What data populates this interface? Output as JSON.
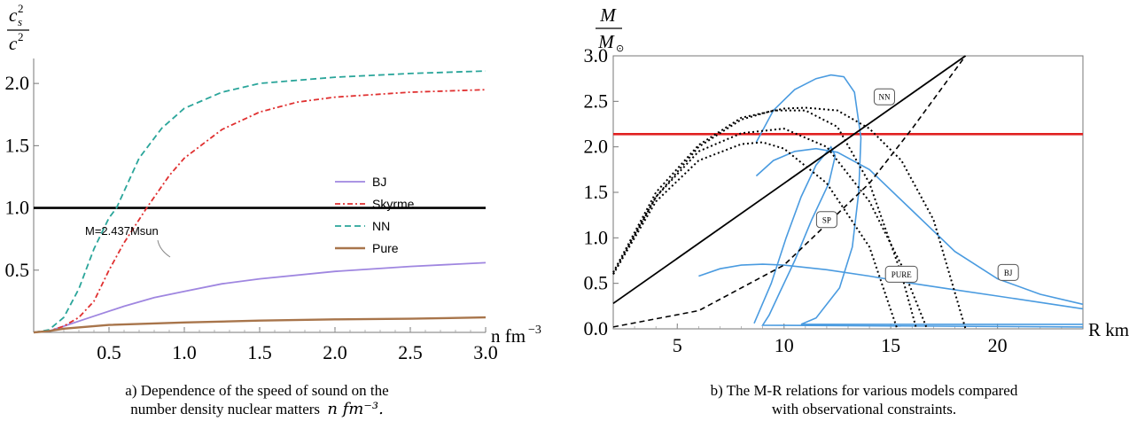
{
  "chart_data": [
    {
      "type": "line",
      "title": "",
      "xlabel": "n fm⁻³",
      "ylabel": "c_s² / c²",
      "xlim": [
        0,
        3.0
      ],
      "ylim": [
        0,
        2.3
      ],
      "xticks": [
        "0.5",
        "1.0",
        "1.5",
        "2.0",
        "2.5",
        "3.0"
      ],
      "yticks": [
        "0.5",
        "1.0",
        "1.5",
        "2.0"
      ],
      "legend_position": "right",
      "annotation": "M=2.437Msun",
      "reference_line": 1.0,
      "series": [
        {
          "name": "BJ",
          "color": "#9f86e0",
          "dash": "solid",
          "x": [
            0,
            0.1,
            0.2,
            0.4,
            0.6,
            0.8,
            1.0,
            1.25,
            1.5,
            2.0,
            2.5,
            3.0
          ],
          "y": [
            0,
            0.01,
            0.05,
            0.13,
            0.21,
            0.28,
            0.33,
            0.39,
            0.43,
            0.49,
            0.53,
            0.56
          ]
        },
        {
          "name": "Skyrme",
          "color": "#e03030",
          "dash": "dashdot",
          "x": [
            0,
            0.1,
            0.2,
            0.3,
            0.4,
            0.5,
            0.6,
            0.75,
            0.9,
            1.0,
            1.25,
            1.5,
            1.75,
            2.0,
            2.5,
            3.0
          ],
          "y": [
            0,
            0.01,
            0.05,
            0.12,
            0.25,
            0.5,
            0.72,
            1.0,
            1.26,
            1.4,
            1.63,
            1.77,
            1.85,
            1.89,
            1.93,
            1.95
          ]
        },
        {
          "name": "NN",
          "color": "#2aa59a",
          "dash": "dashed",
          "x": [
            0,
            0.1,
            0.2,
            0.3,
            0.4,
            0.5,
            0.55,
            0.7,
            0.85,
            1.0,
            1.25,
            1.5,
            2.0,
            2.5,
            3.0
          ],
          "y": [
            0,
            0.02,
            0.12,
            0.35,
            0.67,
            0.92,
            1.0,
            1.4,
            1.64,
            1.8,
            1.93,
            2.0,
            2.05,
            2.08,
            2.1
          ]
        },
        {
          "name": "Pure",
          "color": "#a8754b",
          "dash": "solid",
          "x": [
            0,
            0.1,
            0.2,
            0.5,
            1.0,
            1.5,
            2.0,
            2.5,
            3.0
          ],
          "y": [
            0,
            0.01,
            0.03,
            0.06,
            0.08,
            0.095,
            0.105,
            0.11,
            0.12
          ]
        }
      ]
    },
    {
      "type": "line",
      "title": "",
      "xlabel": "R km",
      "ylabel": "M / M⊙",
      "xlim": [
        2,
        24
      ],
      "ylim": [
        0,
        3.0
      ],
      "xticks": [
        "5",
        "10",
        "15",
        "20"
      ],
      "yticks": [
        "0.0",
        "0.5",
        "1.0",
        "1.5",
        "2.0",
        "2.5",
        "3.0"
      ],
      "horizontal_line": {
        "y": 2.14,
        "color": "#e02020"
      },
      "series": [
        {
          "name": "BJ",
          "color": "#4a9be0",
          "style": "solid",
          "x": [
            8.7,
            9.5,
            10.5,
            11.5,
            12.5,
            14,
            16,
            18,
            20,
            22,
            24
          ],
          "y": [
            1.68,
            1.85,
            1.95,
            1.98,
            1.94,
            1.75,
            1.3,
            0.85,
            0.55,
            0.38,
            0.27
          ]
        },
        {
          "name": "NN",
          "color": "#4a9be0",
          "style": "solid",
          "x": [
            8.7,
            9.5,
            10.5,
            11.5,
            12.2,
            12.8,
            13.3,
            13.6,
            13.5,
            13.2,
            12.6,
            11.5,
            10.8,
            24
          ],
          "y": [
            2.05,
            2.4,
            2.63,
            2.75,
            2.79,
            2.77,
            2.6,
            2.1,
            1.5,
            0.9,
            0.45,
            0.12,
            0.05,
            0.05
          ]
        },
        {
          "name": "SP",
          "color": "#4a9be0",
          "style": "solid",
          "x": [
            8.6,
            9.4,
            10.1,
            10.8,
            11.5,
            12.2,
            12.4,
            12.1,
            11.3,
            10.5,
            9.8,
            9.3,
            9.0,
            24
          ],
          "y": [
            0.06,
            0.5,
            1.0,
            1.45,
            1.8,
            2.0,
            1.9,
            1.6,
            1.2,
            0.75,
            0.4,
            0.15,
            0.04,
            0.02
          ]
        },
        {
          "name": "PURE",
          "color": "#4a9be0",
          "style": "solid",
          "x": [
            6,
            7,
            8,
            9,
            10,
            12,
            14,
            16,
            18,
            20,
            22,
            24
          ],
          "y": [
            0.58,
            0.66,
            0.7,
            0.71,
            0.7,
            0.65,
            0.58,
            0.5,
            0.43,
            0.36,
            0.29,
            0.22
          ]
        },
        {
          "name": "constraint-1",
          "color": "#000000",
          "style": "dotted",
          "x": [
            2,
            4,
            6,
            8,
            9.5,
            11,
            12.5,
            14,
            15.5,
            16.2
          ],
          "y": [
            0.62,
            1.45,
            2.0,
            2.3,
            2.4,
            2.4,
            2.22,
            1.6,
            0.6,
            0.0
          ]
        },
        {
          "name": "constraint-2",
          "color": "#000000",
          "style": "dotted",
          "x": [
            2,
            4,
            6,
            8,
            9,
            10,
            12,
            14,
            15.3
          ],
          "y": [
            0.6,
            1.4,
            1.85,
            2.03,
            2.05,
            1.98,
            1.6,
            0.9,
            0.0
          ]
        },
        {
          "name": "constraint-3",
          "color": "#000000",
          "style": "dotted",
          "x": [
            2,
            4,
            6,
            8,
            10,
            12,
            14,
            15.5,
            16.7
          ],
          "y": [
            0.6,
            1.45,
            1.95,
            2.15,
            2.2,
            2.0,
            1.4,
            0.7,
            0.0
          ]
        },
        {
          "name": "constraint-4",
          "color": "#000000",
          "style": "dotted",
          "x": [
            2,
            4,
            6,
            8,
            10,
            11,
            12.5,
            14,
            15.5,
            17,
            18.5
          ],
          "y": [
            0.62,
            1.5,
            2.02,
            2.32,
            2.42,
            2.43,
            2.4,
            2.2,
            1.85,
            1.2,
            0.0
          ]
        },
        {
          "name": "causality",
          "color": "#000000",
          "style": "dashed",
          "x": [
            2,
            6,
            10,
            14,
            16,
            18.5
          ],
          "y": [
            0.02,
            0.2,
            0.7,
            1.6,
            2.2,
            3.0
          ]
        },
        {
          "name": "limit-line",
          "color": "#000000",
          "style": "solid",
          "x": [
            2,
            18.5
          ],
          "y": [
            0.28,
            3.0
          ]
        }
      ],
      "labels": [
        {
          "text": "NN",
          "x": 14.7,
          "y": 2.55
        },
        {
          "text": "SP",
          "x": 12.0,
          "y": 1.2
        },
        {
          "text": "PURE",
          "x": 15.5,
          "y": 0.6
        },
        {
          "text": "BJ",
          "x": 20.5,
          "y": 0.62
        }
      ]
    }
  ],
  "captions": {
    "left_line1": "a) Dependence of the speed of sound on the",
    "left_line2": "number density nuclear matters",
    "left_math": "n fm⁻³.",
    "right_line1": "b) The M-R relations for various models compared",
    "right_line2": "with observational constraints."
  }
}
